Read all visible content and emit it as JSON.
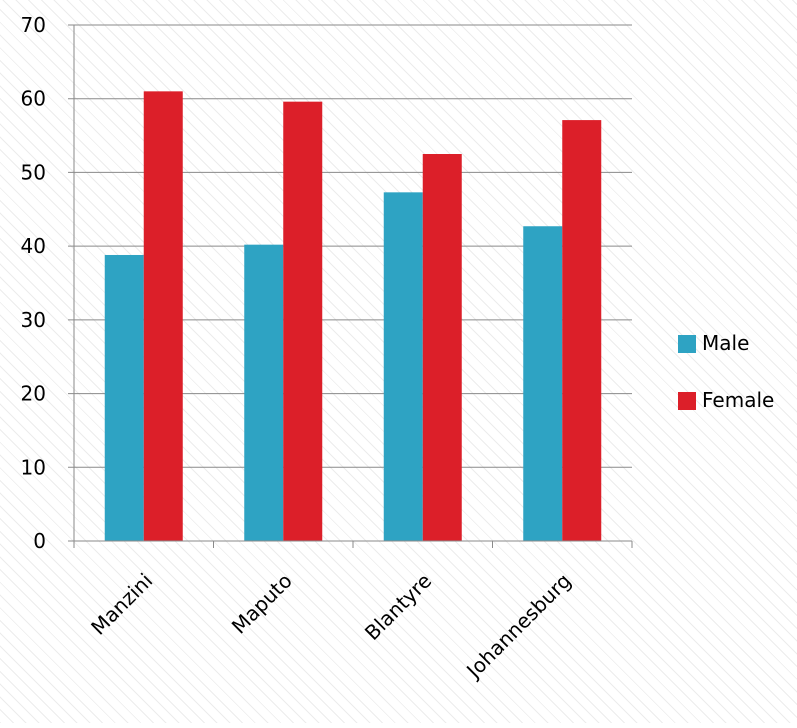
{
  "chart_data": {
    "type": "bar",
    "categories": [
      "Manzini",
      "Maputo",
      "Blantyre",
      "Johannesburg"
    ],
    "series": [
      {
        "name": "Male",
        "values": [
          38.8,
          40.2,
          47.3,
          42.7
        ],
        "color": "#2ea3c3"
      },
      {
        "name": "Female",
        "values": [
          61,
          59.6,
          52.5,
          57.1
        ],
        "color": "#dc1f29"
      }
    ],
    "ylim": [
      0,
      70
    ],
    "yticks": [
      0,
      10,
      20,
      30,
      40,
      50,
      60,
      70
    ],
    "grid": true,
    "legend": "right",
    "title": "",
    "xlabel": "",
    "ylabel": ""
  }
}
